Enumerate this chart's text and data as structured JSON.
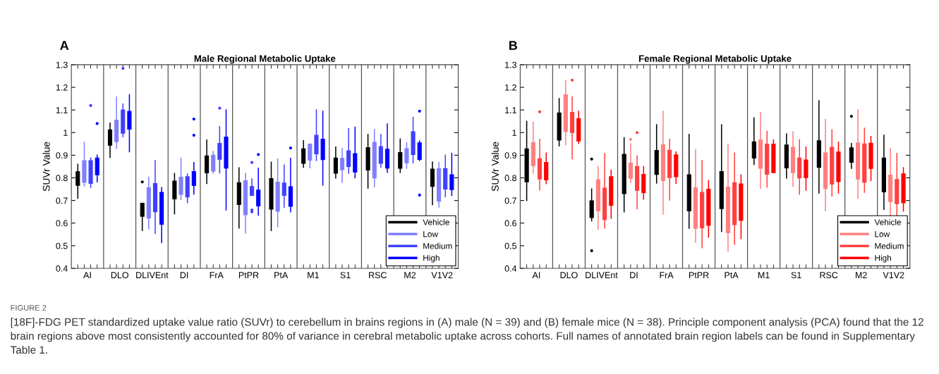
{
  "chart_data": [
    {
      "type": "box",
      "title": "Male Regional Metabolic Uptake",
      "ylabel": "SUVr Value",
      "categories": [
        "AI",
        "DLO",
        "DLIVEnt",
        "DI",
        "FrA",
        "PtPR",
        "PtA",
        "M1",
        "S1",
        "RSC",
        "M2",
        "V1V2"
      ],
      "ylim": [
        0.4,
        1.3
      ],
      "yticks": [
        0.4,
        0.5,
        0.6,
        0.7,
        0.8,
        0.9,
        1,
        1.1,
        1.2,
        1.3
      ],
      "legend": "bottom right",
      "grid": false,
      "annotations": [
        "A",
        "FIGURE 2",
        "[18F]-FDG PET standardized uptake value ratio (SUVr) to cerebellum in brains regions in (A) male (N = 39) and (B) female mice (N = 38). Principle component analysis (PCA) found that the 12 brain regions above most consistently accounted for 80% of variance in cerebral metabolic uptake across cohorts. Full names of annotated brain region labels can be found in Supplementary Table 1."
      ],
      "series": [
        {
          "name": "Vehicle",
          "color": "#000000",
          "boxes": [
            {
              "low": 0.71,
              "q1": 0.767,
              "q3": 0.827,
              "high": 0.86
            },
            {
              "low": 0.89,
              "q1": 0.944,
              "q3": 1.012,
              "high": 1.042
            },
            {
              "low": 0.567,
              "q1": 0.63,
              "q3": 0.688,
              "high": 0.688,
              "outliers": [
                0.782
              ]
            },
            {
              "low": 0.641,
              "q1": 0.707,
              "q3": 0.786,
              "high": 0.819
            },
            {
              "low": 0.775,
              "q1": 0.822,
              "q3": 0.897,
              "high": 0.967
            },
            {
              "low": 0.578,
              "q1": 0.682,
              "q3": 0.779,
              "high": 0.844
            },
            {
              "low": 0.567,
              "q1": 0.662,
              "q3": 0.797,
              "high": 0.869
            },
            {
              "low": 0.847,
              "q1": 0.864,
              "q3": 0.928,
              "high": 0.964
            },
            {
              "low": 0.799,
              "q1": 0.82,
              "q3": 0.888,
              "high": 0.936
            },
            {
              "low": 0.755,
              "q1": 0.834,
              "q3": 0.934,
              "high": 0.992
            },
            {
              "low": 0.824,
              "q1": 0.842,
              "q3": 0.912,
              "high": 0.972
            },
            {
              "low": 0.682,
              "q1": 0.762,
              "q3": 0.839,
              "high": 0.87
            }
          ]
        },
        {
          "name": "Low",
          "color": "#8080ff",
          "boxes": [
            {
              "low": 0.764,
              "q1": 0.78,
              "q3": 0.876,
              "high": 0.957
            },
            {
              "low": 0.93,
              "q1": 0.96,
              "q3": 1.055,
              "high": 1.158
            },
            {
              "low": 0.575,
              "q1": 0.622,
              "q3": 0.756,
              "high": 0.803
            },
            {
              "low": 0.705,
              "q1": 0.727,
              "q3": 0.803,
              "high": 0.886
            },
            {
              "low": 0.82,
              "q1": 0.83,
              "q3": 0.9,
              "high": 0.917
            },
            {
              "low": 0.556,
              "q1": 0.637,
              "q3": 0.787,
              "high": 0.819
            },
            {
              "low": 0.584,
              "q1": 0.652,
              "q3": 0.781,
              "high": 0.883
            },
            {
              "low": 0.844,
              "q1": 0.878,
              "q3": 0.949,
              "high": 0.949
            },
            {
              "low": 0.78,
              "q1": 0.836,
              "q3": 0.886,
              "high": 0.93
            },
            {
              "low": 0.76,
              "q1": 0.799,
              "q3": 0.957,
              "high": 1.013
            },
            {
              "low": 0.842,
              "q1": 0.866,
              "q3": 0.929,
              "high": 0.955
            },
            {
              "low": 0.671,
              "q1": 0.697,
              "q3": 0.841,
              "high": 0.868
            }
          ]
        },
        {
          "name": "Medium",
          "color": "#4040ff",
          "boxes": [
            {
              "low": 0.758,
              "q1": 0.775,
              "q3": 0.876,
              "high": 0.888,
              "outliers": [
                1.12
              ]
            },
            {
              "low": 0.982,
              "q1": 0.997,
              "q3": 1.1,
              "high": 1.127,
              "outliers": [
                1.284
              ]
            },
            {
              "low": 0.554,
              "q1": 0.65,
              "q3": 0.775,
              "high": 0.876
            },
            {
              "low": 0.69,
              "q1": 0.715,
              "q3": 0.805,
              "high": 0.817
            },
            {
              "low": 0.822,
              "q1": 0.882,
              "q3": 0.952,
              "high": 1.026,
              "outliers": [
                1.108
              ]
            },
            {
              "low": 0.722,
              "q1": 0.722,
              "q3": 0.762,
              "high": 0.795,
              "outliers": [
                0.868,
                0.658,
                0.65
              ]
            },
            {
              "low": 0.67,
              "q1": 0.722,
              "q3": 0.777,
              "high": 0.857
            },
            {
              "low": 0.876,
              "q1": 0.906,
              "q3": 0.988,
              "high": 1.1
            },
            {
              "low": 0.82,
              "q1": 0.85,
              "q3": 0.92,
              "high": 1.017
            },
            {
              "low": 0.847,
              "q1": 0.864,
              "q3": 0.938,
              "high": 0.991
            },
            {
              "low": 0.866,
              "q1": 0.903,
              "q3": 1.004,
              "high": 1.067
            },
            {
              "low": 0.717,
              "q1": 0.75,
              "q3": 0.841,
              "high": 0.9
            }
          ]
        },
        {
          "name": "High",
          "color": "#0000ff",
          "boxes": [
            {
              "low": 0.782,
              "q1": 0.813,
              "q3": 0.888,
              "high": 0.9,
              "outliers": [
                1.04
              ]
            },
            {
              "low": 0.915,
              "q1": 1.015,
              "q3": 1.094,
              "high": 1.167
            },
            {
              "low": 0.514,
              "q1": 0.595,
              "q3": 0.736,
              "high": 0.757
            },
            {
              "low": 0.728,
              "q1": 0.766,
              "q3": 0.828,
              "high": 0.868,
              "outliers": [
                1.06,
                0.988
              ]
            },
            {
              "low": 0.658,
              "q1": 0.843,
              "q3": 0.98,
              "high": 1.1
            },
            {
              "low": 0.635,
              "q1": 0.676,
              "q3": 0.746,
              "high": 0.843,
              "outliers": [
                0.903
              ]
            },
            {
              "low": 0.65,
              "q1": 0.674,
              "q3": 0.761,
              "high": 0.886,
              "outliers": [
                0.932
              ]
            },
            {
              "low": 0.768,
              "q1": 0.88,
              "q3": 0.971,
              "high": 1.094
            },
            {
              "low": 0.8,
              "q1": 0.826,
              "q3": 0.907,
              "high": 1.024
            },
            {
              "low": 0.824,
              "q1": 0.843,
              "q3": 0.927,
              "high": 1.038
            },
            {
              "low": 0.876,
              "q1": 0.881,
              "q3": 0.955,
              "high": 0.963,
              "outliers": [
                1.095,
                0.724
              ]
            },
            {
              "low": 0.722,
              "q1": 0.748,
              "q3": 0.814,
              "high": 0.908
            }
          ]
        }
      ]
    },
    {
      "type": "box",
      "title": "Female Regional Metabolic Uptake",
      "ylabel": "SUVr Value",
      "categories": [
        "AI",
        "DLO",
        "DLIVEnt",
        "DI",
        "FrA",
        "PtPR",
        "PtA",
        "M1",
        "S1",
        "RSC",
        "M2",
        "V1V2"
      ],
      "ylim": [
        0.4,
        1.3
      ],
      "yticks": [
        0.4,
        0.5,
        0.6,
        0.7,
        0.8,
        0.9,
        1,
        1.1,
        1.2,
        1.3
      ],
      "legend": "bottom right",
      "grid": false,
      "annotations": [
        "B"
      ],
      "series": [
        {
          "name": "Vehicle",
          "color": "#000000",
          "boxes": [
            {
              "low": 0.7,
              "q1": 0.782,
              "q3": 0.928,
              "high": 1.05
            },
            {
              "low": 0.941,
              "q1": 0.967,
              "q3": 1.087,
              "high": 1.15
            },
            {
              "low": 0.61,
              "q1": 0.624,
              "q3": 0.699,
              "high": 0.751,
              "outliers": [
                0.883,
                0.478
              ]
            },
            {
              "low": 0.65,
              "q1": 0.73,
              "q3": 0.904,
              "high": 0.977
            },
            {
              "low": 0.777,
              "q1": 0.815,
              "q3": 0.921,
              "high": 1.035
            },
            {
              "low": 0.577,
              "q1": 0.654,
              "q3": 0.814,
              "high": 0.992
            },
            {
              "low": 0.563,
              "q1": 0.664,
              "q3": 0.828,
              "high": 1.034
            },
            {
              "low": 0.859,
              "q1": 0.887,
              "q3": 0.959,
              "high": 1.065
            },
            {
              "low": 0.799,
              "q1": 0.844,
              "q3": 0.945,
              "high": 0.994
            },
            {
              "low": 0.733,
              "q1": 0.846,
              "q3": 0.964,
              "high": 1.141
            },
            {
              "low": 0.842,
              "q1": 0.869,
              "q3": 0.933,
              "high": 0.952,
              "outliers": [
                1.072
              ]
            },
            {
              "low": 0.661,
              "q1": 0.738,
              "q3": 0.888,
              "high": 0.988
            }
          ]
        },
        {
          "name": "Low",
          "color": "#ff8080",
          "boxes": [
            {
              "low": 0.821,
              "q1": 0.854,
              "q3": 0.956,
              "high": 1.046
            },
            {
              "low": 0.946,
              "q1": 1.005,
              "q3": 1.167,
              "high": 1.231
            },
            {
              "low": 0.573,
              "q1": 0.654,
              "q3": 0.792,
              "high": 0.85
            },
            {
              "low": 0.78,
              "q1": 0.798,
              "q3": 0.866,
              "high": 0.951,
              "outliers": [
                0.97
              ]
            },
            {
              "low": 0.64,
              "q1": 0.788,
              "q3": 0.946,
              "high": 1.094
            },
            {
              "low": 0.515,
              "q1": 0.577,
              "q3": 0.756,
              "high": 0.925
            },
            {
              "low": 0.476,
              "q1": 0.557,
              "q3": 0.76,
              "high": 0.949
            },
            {
              "low": 0.753,
              "q1": 0.842,
              "q3": 0.967,
              "high": 1.088
            },
            {
              "low": 0.762,
              "q1": 0.823,
              "q3": 0.935,
              "high": 1.003
            },
            {
              "low": 0.655,
              "q1": 0.753,
              "q3": 0.91,
              "high": 1.058
            },
            {
              "low": 0.709,
              "q1": 0.795,
              "q3": 0.955,
              "high": 1.1
            },
            {
              "low": 0.632,
              "q1": 0.695,
              "q3": 0.812,
              "high": 0.928
            }
          ]
        },
        {
          "name": "Medium",
          "color": "#ff4040",
          "boxes": [
            {
              "low": 0.746,
              "q1": 0.795,
              "q3": 0.885,
              "high": 0.97,
              "outliers": [
                1.092
              ]
            },
            {
              "low": 0.884,
              "q1": 1.0,
              "q3": 1.089,
              "high": 1.158,
              "outliers": [
                1.232
              ]
            },
            {
              "low": 0.578,
              "q1": 0.616,
              "q3": 0.755,
              "high": 0.907
            },
            {
              "low": 0.663,
              "q1": 0.744,
              "q3": 0.85,
              "high": 0.897,
              "outliers": [
                1.0
              ]
            },
            {
              "low": 0.702,
              "q1": 0.801,
              "q3": 0.922,
              "high": 0.97
            },
            {
              "low": 0.491,
              "q1": 0.578,
              "q3": 0.736,
              "high": 0.876
            },
            {
              "low": 0.507,
              "q1": 0.593,
              "q3": 0.779,
              "high": 0.91
            },
            {
              "low": 0.759,
              "q1": 0.816,
              "q3": 0.949,
              "high": 1.005
            },
            {
              "low": 0.728,
              "q1": 0.799,
              "q3": 0.888,
              "high": 0.968
            },
            {
              "low": 0.719,
              "q1": 0.772,
              "q3": 0.935,
              "high": 1.012
            },
            {
              "low": 0.736,
              "q1": 0.78,
              "q3": 0.95,
              "high": 1.019
            },
            {
              "low": 0.624,
              "q1": 0.686,
              "q3": 0.793,
              "high": 0.908
            }
          ]
        },
        {
          "name": "High",
          "color": "#ff0000",
          "boxes": [
            {
              "low": 0.774,
              "q1": 0.791,
              "q3": 0.868,
              "high": 0.91
            },
            {
              "low": 0.952,
              "q1": 0.963,
              "q3": 1.062,
              "high": 1.094
            },
            {
              "low": 0.621,
              "q1": 0.678,
              "q3": 0.805,
              "high": 0.834
            },
            {
              "low": 0.706,
              "q1": 0.734,
              "q3": 0.815,
              "high": 0.85
            },
            {
              "low": 0.775,
              "q1": 0.805,
              "q3": 0.902,
              "high": 0.914
            },
            {
              "low": 0.538,
              "q1": 0.59,
              "q3": 0.75,
              "high": 0.788
            },
            {
              "low": 0.532,
              "q1": 0.612,
              "q3": 0.773,
              "high": 0.813
            },
            {
              "low": 0.823,
              "q1": 0.823,
              "q3": 0.949,
              "high": 0.967
            },
            {
              "low": 0.745,
              "q1": 0.801,
              "q3": 0.879,
              "high": 0.936
            },
            {
              "low": 0.733,
              "q1": 0.783,
              "q3": 0.914,
              "high": 0.958
            },
            {
              "low": 0.788,
              "q1": 0.841,
              "q3": 0.953,
              "high": 0.983
            },
            {
              "low": 0.653,
              "q1": 0.69,
              "q3": 0.818,
              "high": 0.845
            }
          ]
        }
      ]
    }
  ]
}
